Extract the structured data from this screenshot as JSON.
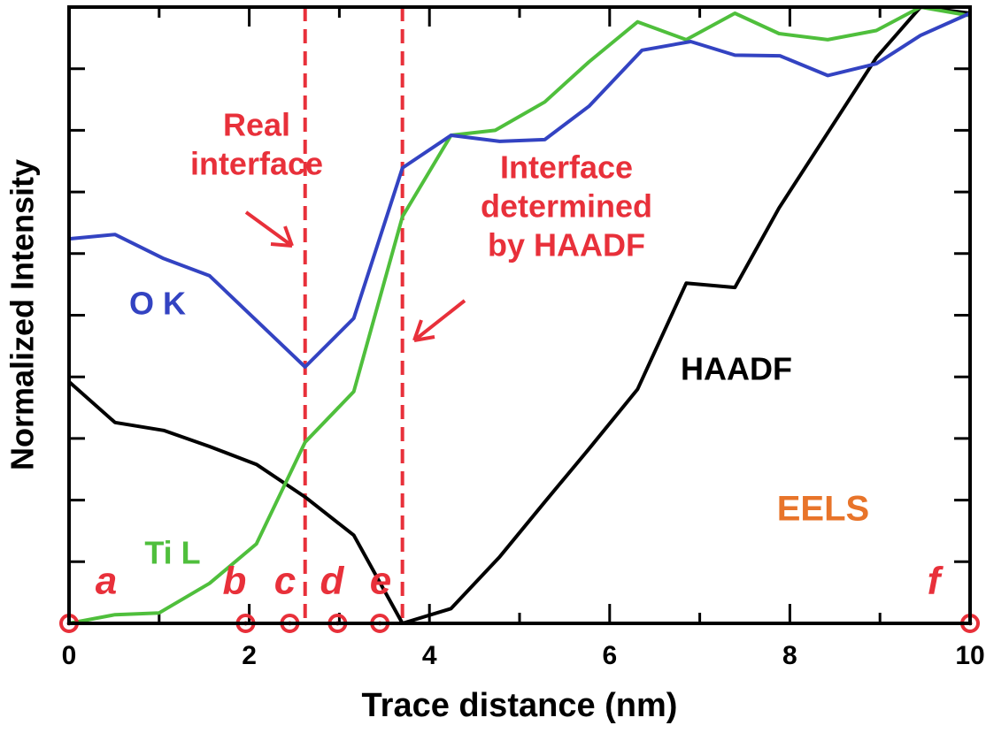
{
  "chart_data": {
    "type": "line",
    "x_label": "Trace distance (nm)",
    "y_label": "Normalized Intensity",
    "xlim": [
      0,
      10
    ],
    "ylim": [
      0,
      1
    ],
    "xticks": [
      0,
      2,
      4,
      6,
      8,
      10
    ],
    "yticks": [
      0,
      0.1,
      0.2,
      0.3,
      0.4,
      0.5,
      0.6,
      0.7,
      0.8,
      0.9,
      1
    ],
    "series": [
      {
        "name": "O K",
        "color": "#3343c2",
        "x": [
          0,
          0.51,
          1.05,
          1.56,
          2.62,
          3.16,
          3.7,
          4.24,
          4.78,
          5.28,
          5.77,
          6.36,
          6.9,
          7.39,
          7.89,
          8.42,
          8.96,
          9.45,
          10
        ],
        "values": [
          0.624,
          0.631,
          0.592,
          0.564,
          0.416,
          0.495,
          0.739,
          0.792,
          0.782,
          0.785,
          0.839,
          0.93,
          0.944,
          0.922,
          0.921,
          0.889,
          0.908,
          0.954,
          0.99
        ]
      },
      {
        "name": "Ti L",
        "color": "#4fbf3c",
        "x": [
          0,
          0.51,
          1.0,
          1.56,
          2.08,
          2.62,
          3.16,
          3.7,
          4.24,
          4.73,
          5.28,
          5.77,
          6.31,
          6.85,
          7.39,
          7.88,
          8.42,
          8.96,
          9.45,
          10
        ],
        "values": [
          0,
          0.014,
          0.017,
          0.065,
          0.129,
          0.294,
          0.376,
          0.66,
          0.792,
          0.8,
          0.846,
          0.911,
          0.976,
          0.947,
          0.99,
          0.957,
          0.947,
          0.962,
          1.0,
          0.986
        ]
      },
      {
        "name": "HAADF",
        "color": "#000000",
        "x": [
          0,
          0.51,
          1.05,
          1.56,
          2.08,
          2.62,
          3.16,
          3.7,
          4.24,
          4.78,
          5.28,
          5.77,
          6.31,
          6.85,
          7.39,
          7.88,
          8.42,
          8.96,
          9.45,
          10
        ],
        "values": [
          0.392,
          0.326,
          0.313,
          0.287,
          0.258,
          0.205,
          0.143,
          0,
          0.024,
          0.108,
          0.197,
          0.283,
          0.38,
          0.552,
          0.545,
          0.674,
          0.796,
          0.918,
          1.0,
          0.99
        ]
      }
    ],
    "interfaces": [
      {
        "x": 2.62,
        "label": [
          "Real",
          "interface"
        ]
      },
      {
        "x": 3.7,
        "label": [
          "Interface",
          "determined",
          "by HAADF"
        ]
      }
    ],
    "markers": {
      "x": [
        0,
        1.96,
        2.45,
        2.98,
        3.45,
        10
      ],
      "labels": [
        "a",
        "b",
        "c",
        "d",
        "e",
        "f"
      ]
    },
    "annotation": "EELS"
  }
}
